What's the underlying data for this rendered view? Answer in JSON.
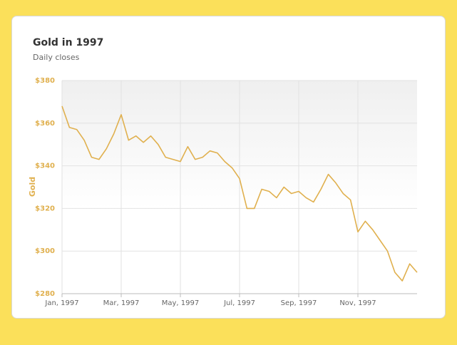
{
  "chart_data": {
    "type": "line",
    "title": "Gold in 1997",
    "subtitle": "Daily closes",
    "y_label": "Gold",
    "color": "#e0b04e",
    "categories": [
      "Jan, 1997",
      null,
      null,
      null,
      null,
      null,
      null,
      null,
      "Mar, 1997",
      null,
      null,
      null,
      null,
      null,
      null,
      null,
      "May, 1997",
      null,
      null,
      null,
      null,
      null,
      null,
      null,
      "Jul, 1997",
      null,
      null,
      null,
      null,
      null,
      null,
      null,
      "Sep, 1997",
      null,
      null,
      null,
      null,
      null,
      null,
      null,
      "Nov, 1997",
      null,
      null,
      null,
      null,
      null,
      null,
      null,
      null
    ],
    "values": [
      368,
      358,
      357,
      352,
      344,
      343,
      348,
      355,
      364,
      352,
      354,
      351,
      354,
      350,
      344,
      343,
      342,
      349,
      343,
      344,
      347,
      346,
      342,
      339,
      334,
      320,
      320,
      329,
      328,
      325,
      330,
      327,
      328,
      325,
      323,
      329,
      336,
      332,
      327,
      324,
      309,
      314,
      310,
      305,
      300,
      290,
      286,
      294,
      290
    ],
    "ylim": [
      280,
      380
    ],
    "yticks": [
      {
        "value": 280,
        "label": "$280"
      },
      {
        "value": 300,
        "label": "$300"
      },
      {
        "value": 320,
        "label": "$320"
      },
      {
        "value": 340,
        "label": "$340"
      },
      {
        "value": 360,
        "label": "$360"
      },
      {
        "value": 380,
        "label": "$380"
      }
    ],
    "grid": true
  }
}
